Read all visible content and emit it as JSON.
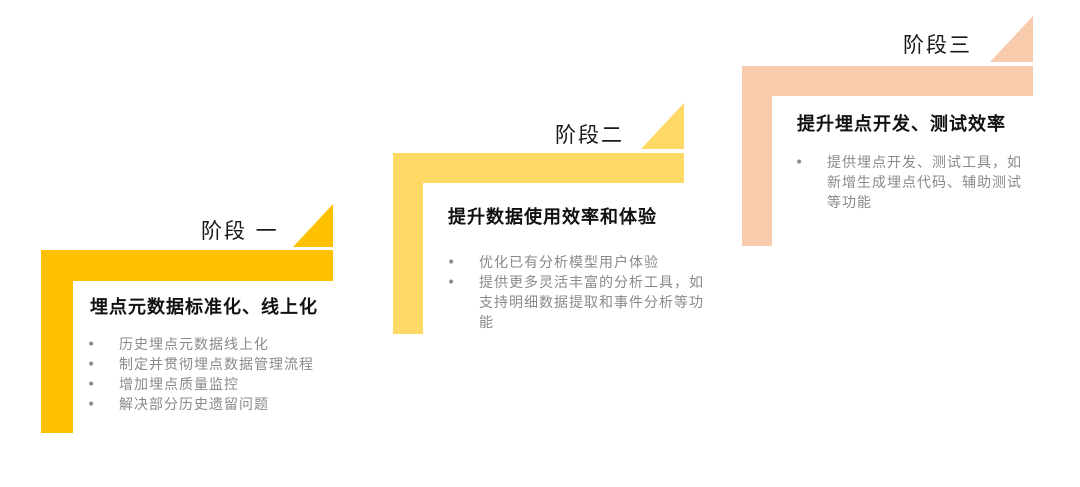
{
  "colors": {
    "stage1": "#FFC000",
    "stage2": "#FFD966",
    "stage3": "#F8CBAD"
  },
  "stages": [
    {
      "label": "阶段 一",
      "heading": "埋点元数据标准化、线上化",
      "items": [
        "历史埋点元数据线上化",
        "制定并贯彻埋点数据管理流程",
        "增加埋点质量监控",
        "解决部分历史遗留问题"
      ]
    },
    {
      "label": "阶段二",
      "heading": "提升数据使用效率和体验",
      "items": [
        "优化已有分析模型用户体验",
        "提供更多灵活丰富的分析工具，如支持明细数据提取和事件分析等功能"
      ]
    },
    {
      "label": "阶段三",
      "heading": "提升埋点开发、测试效率",
      "items": [
        "提供埋点开发、测试工具，如新增生成埋点代码、辅助测试等功能"
      ]
    }
  ]
}
